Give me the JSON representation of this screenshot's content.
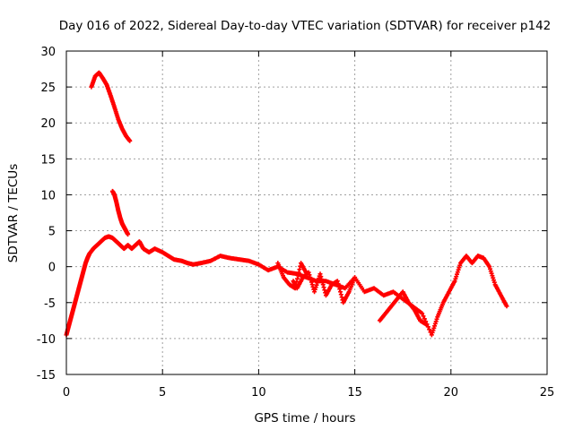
{
  "chart_data": {
    "type": "scatter",
    "title": "Day 016 of 2022, Sidereal Day-to-day VTEC variation (SDTVAR) for receiver p142",
    "xlabel": "GPS time / hours",
    "ylabel": "SDTVAR / TECUs",
    "xlim": [
      0,
      25
    ],
    "ylim": [
      -15,
      30
    ],
    "xticks": [
      0,
      5,
      10,
      15,
      20,
      25
    ],
    "yticks": [
      -15,
      -10,
      -5,
      0,
      5,
      10,
      15,
      20,
      25,
      30
    ],
    "grid": true,
    "marker": "+",
    "series_color": "#ff0000",
    "series": [
      {
        "name": "segment-1",
        "x": [
          1.3,
          1.5,
          1.7,
          1.9,
          2.1,
          2.3,
          2.5,
          2.7,
          2.9,
          3.1,
          3.3
        ],
        "y": [
          25.0,
          26.5,
          27.0,
          26.2,
          25.3,
          23.8,
          22.2,
          20.5,
          19.2,
          18.2,
          17.5
        ]
      },
      {
        "name": "segment-2",
        "x": [
          2.4,
          2.5,
          2.6,
          2.7,
          2.8,
          2.9,
          3.0,
          3.1,
          3.2
        ],
        "y": [
          10.5,
          10.0,
          9.0,
          7.8,
          6.8,
          6.0,
          5.5,
          5.0,
          4.5
        ]
      },
      {
        "name": "segment-3",
        "x": [
          0.0,
          0.1,
          0.2,
          0.3,
          0.4,
          0.5,
          0.6,
          0.7,
          0.8,
          0.9,
          1.0,
          1.1,
          1.2,
          1.4,
          1.6,
          1.8,
          2.0,
          2.2,
          2.4,
          2.6,
          2.8,
          3.0,
          3.2,
          3.4,
          3.6,
          3.8,
          4.0,
          4.3,
          4.6,
          5.0,
          5.3,
          5.6,
          6.0,
          6.3,
          6.6,
          7.0,
          7.5,
          8.0,
          8.5,
          9.0,
          9.5,
          10.0,
          10.5,
          11.0,
          11.5,
          12.0,
          12.5,
          13.0,
          13.5,
          14.0,
          14.5,
          15.0,
          15.5,
          16.0,
          16.5,
          17.0,
          17.5,
          18.0,
          18.5,
          19.0,
          19.3,
          19.6,
          19.9,
          20.2,
          20.5,
          20.8,
          21.1,
          21.4,
          21.7,
          22.0,
          22.3,
          22.6,
          22.9
        ],
        "y": [
          -9.5,
          -8.5,
          -7.5,
          -6.5,
          -5.5,
          -4.5,
          -3.5,
          -2.5,
          -1.5,
          -0.5,
          0.5,
          1.2,
          1.8,
          2.5,
          3.0,
          3.5,
          4.0,
          4.2,
          4.0,
          3.5,
          3.0,
          2.5,
          3.0,
          2.5,
          3.0,
          3.5,
          2.5,
          2.0,
          2.5,
          2.0,
          1.5,
          1.0,
          0.8,
          0.5,
          0.3,
          0.5,
          0.8,
          1.5,
          1.2,
          1.0,
          0.8,
          0.3,
          -0.5,
          0.0,
          -0.8,
          -1.0,
          -1.5,
          -2.0,
          -2.0,
          -2.5,
          -3.0,
          -1.5,
          -3.5,
          -3.0,
          -4.0,
          -3.5,
          -4.5,
          -5.5,
          -6.5,
          -9.5,
          -7.0,
          -5.0,
          -3.5,
          -2.0,
          0.5,
          1.5,
          0.5,
          1.5,
          1.2,
          0.0,
          -2.5,
          -4.0,
          -5.5
        ]
      },
      {
        "name": "segment-4",
        "x": [
          11.8,
          12.0,
          12.3,
          12.6,
          12.9,
          13.2,
          13.5,
          13.8,
          14.1,
          14.4,
          14.7,
          15.0
        ],
        "y": [
          -2.0,
          -3.0,
          -1.5,
          -0.8,
          -3.5,
          -1.0,
          -4.0,
          -2.5,
          -2.0,
          -5.0,
          -3.5,
          -1.5
        ]
      },
      {
        "name": "segment-5",
        "x": [
          16.3,
          16.6,
          16.9,
          17.2,
          17.5,
          17.8,
          18.1,
          18.4,
          18.7
        ],
        "y": [
          -7.5,
          -6.5,
          -5.5,
          -4.5,
          -3.5,
          -5.0,
          -6.0,
          -7.5,
          -8.0
        ]
      },
      {
        "name": "segment-6",
        "x": [
          11.0,
          11.3,
          11.6,
          11.9,
          12.2,
          12.5
        ],
        "y": [
          0.5,
          -1.5,
          -2.5,
          -3.0,
          0.5,
          -1.0
        ]
      }
    ]
  }
}
